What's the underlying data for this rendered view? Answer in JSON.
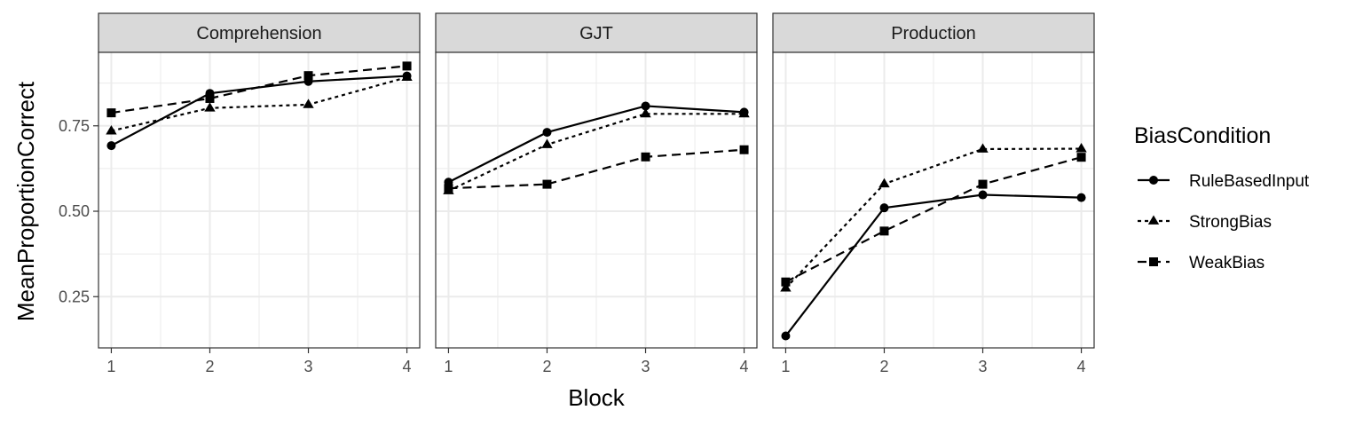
{
  "chart_data": {
    "type": "line",
    "facet_variable": "task",
    "panels": [
      {
        "title": "Comprehension",
        "series": [
          {
            "name": "RuleBasedInput",
            "values": [
              0.692,
              0.845,
              0.88,
              0.896
            ]
          },
          {
            "name": "StrongBias",
            "values": [
              0.735,
              0.802,
              0.812,
              0.892
            ]
          },
          {
            "name": "WeakBias",
            "values": [
              0.788,
              0.83,
              0.897,
              0.925
            ]
          }
        ]
      },
      {
        "title": "GJT",
        "series": [
          {
            "name": "RuleBasedInput",
            "values": [
              0.585,
              0.731,
              0.808,
              0.79
            ]
          },
          {
            "name": "StrongBias",
            "values": [
              0.56,
              0.695,
              0.785,
              0.785
            ]
          },
          {
            "name": "WeakBias",
            "values": [
              0.567,
              0.579,
              0.659,
              0.68
            ]
          }
        ]
      },
      {
        "title": "Production",
        "series": [
          {
            "name": "RuleBasedInput",
            "values": [
              0.135,
              0.51,
              0.548,
              0.54
            ]
          },
          {
            "name": "StrongBias",
            "values": [
              0.275,
              0.58,
              0.682,
              0.683
            ]
          },
          {
            "name": "WeakBias",
            "values": [
              0.293,
              0.442,
              0.579,
              0.658
            ]
          }
        ]
      }
    ],
    "x": [
      1,
      2,
      3,
      4
    ],
    "xticks": [
      "1",
      "2",
      "3",
      "4"
    ],
    "yticks": [
      0.25,
      0.5,
      0.75
    ],
    "ytick_labels": [
      "0.25",
      "0.50",
      "0.75"
    ],
    "xlim": [
      0.87,
      4.13
    ],
    "ylim": [
      0.1,
      0.965
    ],
    "xlabel": "Block",
    "ylabel": "MeanProportionCorrect",
    "legend": {
      "title": "BiasCondition",
      "position": "right",
      "entries": [
        {
          "name": "RuleBasedInput",
          "shape": "circle",
          "linestyle": "solid"
        },
        {
          "name": "StrongBias",
          "shape": "triangle",
          "linestyle": "dotted"
        },
        {
          "name": "WeakBias",
          "shape": "square",
          "linestyle": "dashed"
        }
      ]
    },
    "grid": true,
    "colors": {
      "line": "#000000",
      "strip_fill": "#d9d9d9",
      "grid": "#ebebeb",
      "border": "#333333"
    }
  }
}
